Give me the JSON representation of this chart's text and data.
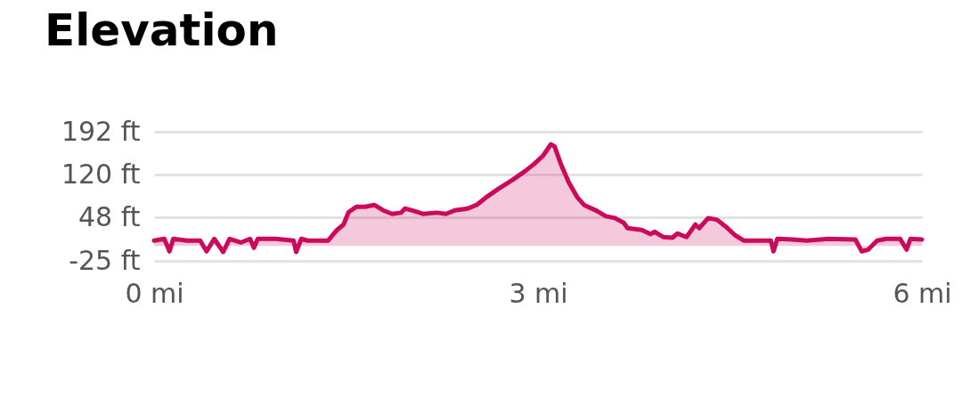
{
  "chart_data": {
    "type": "area",
    "title": "Elevation",
    "xlim": [
      0,
      6
    ],
    "xticks": [
      {
        "value": 0,
        "label": "0 mi"
      },
      {
        "value": 3,
        "label": "3 mi"
      },
      {
        "value": 6,
        "label": "6 mi"
      }
    ],
    "ylim": [
      -25,
      192
    ],
    "yticks": [
      {
        "value": -25,
        "label": "-25 ft"
      },
      {
        "value": 48,
        "label": "48 ft"
      },
      {
        "value": 120,
        "label": "120 ft"
      },
      {
        "value": 192,
        "label": "192 ft"
      }
    ],
    "grid": "y",
    "legend": false,
    "series": [
      {
        "color": "#cc0a5c",
        "x": [
          0,
          0.08,
          0.12,
          0.15,
          0.26,
          0.36,
          0.41,
          0.47,
          0.54,
          0.59,
          0.68,
          0.75,
          0.78,
          0.81,
          0.95,
          1.09,
          1.11,
          1.15,
          1.2,
          1.36,
          1.39,
          1.43,
          1.48,
          1.52,
          1.58,
          1.65,
          1.72,
          1.79,
          1.86,
          1.93,
          1.96,
          2.03,
          2.1,
          2.21,
          2.28,
          2.35,
          2.45,
          2.52,
          2.59,
          2.69,
          2.8,
          2.9,
          2.97,
          3.04,
          3.1,
          3.13,
          3.18,
          3.24,
          3.31,
          3.36,
          3.46,
          3.53,
          3.6,
          3.67,
          3.7,
          3.81,
          3.88,
          3.91,
          3.98,
          4.05,
          4.09,
          4.16,
          4.19,
          4.23,
          4.26,
          4.33,
          4.4,
          4.47,
          4.54,
          4.61,
          4.82,
          4.84,
          4.87,
          4.99,
          5.1,
          5.27,
          5.48,
          5.53,
          5.58,
          5.65,
          5.72,
          5.83,
          5.88,
          5.91,
          6
        ],
        "values": [
          9,
          12,
          -9,
          12,
          9,
          9,
          -9,
          12,
          -10,
          12,
          6,
          12,
          -3,
          12,
          12,
          9,
          -10,
          12,
          9,
          9,
          17,
          27,
          36,
          57,
          66,
          66,
          69,
          60,
          54,
          56,
          63,
          59,
          54,
          56,
          54,
          60,
          63,
          69,
          81,
          96,
          111,
          126,
          138,
          152,
          171,
          167,
          137,
          107,
          81,
          69,
          59,
          50,
          47,
          39,
          30,
          27,
          20,
          24,
          15,
          14,
          21,
          15,
          24,
          36,
          30,
          47,
          44,
          32,
          18,
          9,
          9,
          -9,
          12,
          11,
          9,
          12,
          11,
          -9,
          -6,
          9,
          12,
          12,
          -6,
          12,
          11
        ]
      }
    ]
  }
}
